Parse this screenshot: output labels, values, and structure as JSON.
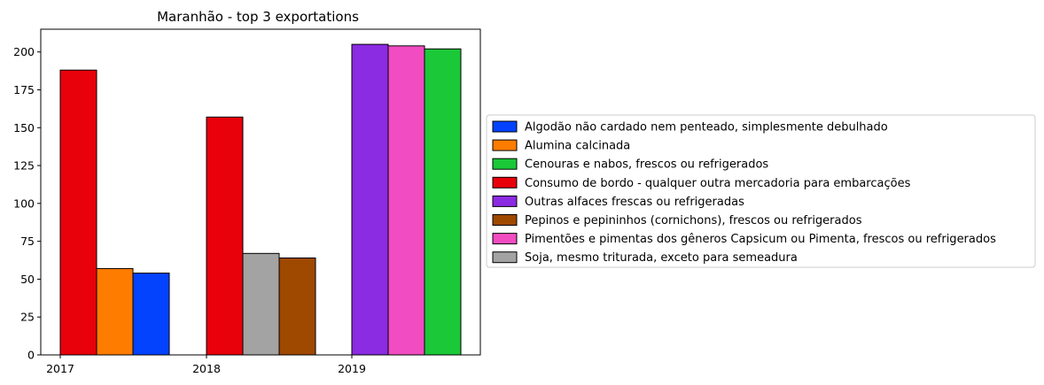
{
  "chart_data": {
    "type": "bar",
    "title": "Maranhão - top 3 exportations",
    "xlabel": "",
    "ylabel": "",
    "ylim": [
      0,
      215
    ],
    "yticks": [
      0,
      25,
      50,
      75,
      100,
      125,
      150,
      175,
      200
    ],
    "categories": [
      "2017",
      "2018",
      "2019"
    ],
    "legend_position": "right",
    "series": [
      {
        "name": "Algodão não cardado nem penteado, simplesmente debulhado",
        "color": "#0343fe",
        "values": [
          54,
          null,
          null
        ]
      },
      {
        "name": "Alumina calcinada",
        "color": "#fe7c00",
        "values": [
          57,
          null,
          null
        ]
      },
      {
        "name": "Cenouras e nabos, frescos ou refrigerados",
        "color": "#1ac838",
        "values": [
          null,
          null,
          202
        ]
      },
      {
        "name": "Consumo de bordo - qualquer outra mercadoria para embarcações",
        "color": "#e8000b",
        "values": [
          188,
          157,
          null
        ]
      },
      {
        "name": "Outras alfaces frescas ou refrigeradas",
        "color": "#8b2be2",
        "values": [
          null,
          null,
          205
        ]
      },
      {
        "name": "Pepinos e pepininhos (cornichons), frescos ou refrigerados",
        "color": "#9f4800",
        "values": [
          null,
          64,
          null
        ]
      },
      {
        "name": "Pimentões e pimentas dos gêneros Capsicum ou Pimenta, frescos ou refrigerados",
        "color": "#f14cc1",
        "values": [
          null,
          null,
          204
        ]
      },
      {
        "name": "Soja, mesmo triturada, exceto para semeadura",
        "color": "#a3a3a3",
        "values": [
          null,
          67,
          null
        ]
      }
    ],
    "bar_order": [
      [
        "Consumo de bordo - qualquer outra mercadoria para embarcações",
        "Alumina calcinada",
        "Algodão não cardado nem penteado, simplesmente debulhado"
      ],
      [
        "Consumo de bordo - qualquer outra mercadoria para embarcações",
        "Soja, mesmo triturada, exceto para semeadura",
        "Pepinos e pepininhos (cornichons), frescos ou refrigerados"
      ],
      [
        "Outras alfaces frescas ou refrigeradas",
        "Pimentões e pimentas dos gêneros Capsicum ou Pimenta, frescos ou refrigerados",
        "Cenouras e nabos, frescos ou refrigerados"
      ]
    ]
  }
}
